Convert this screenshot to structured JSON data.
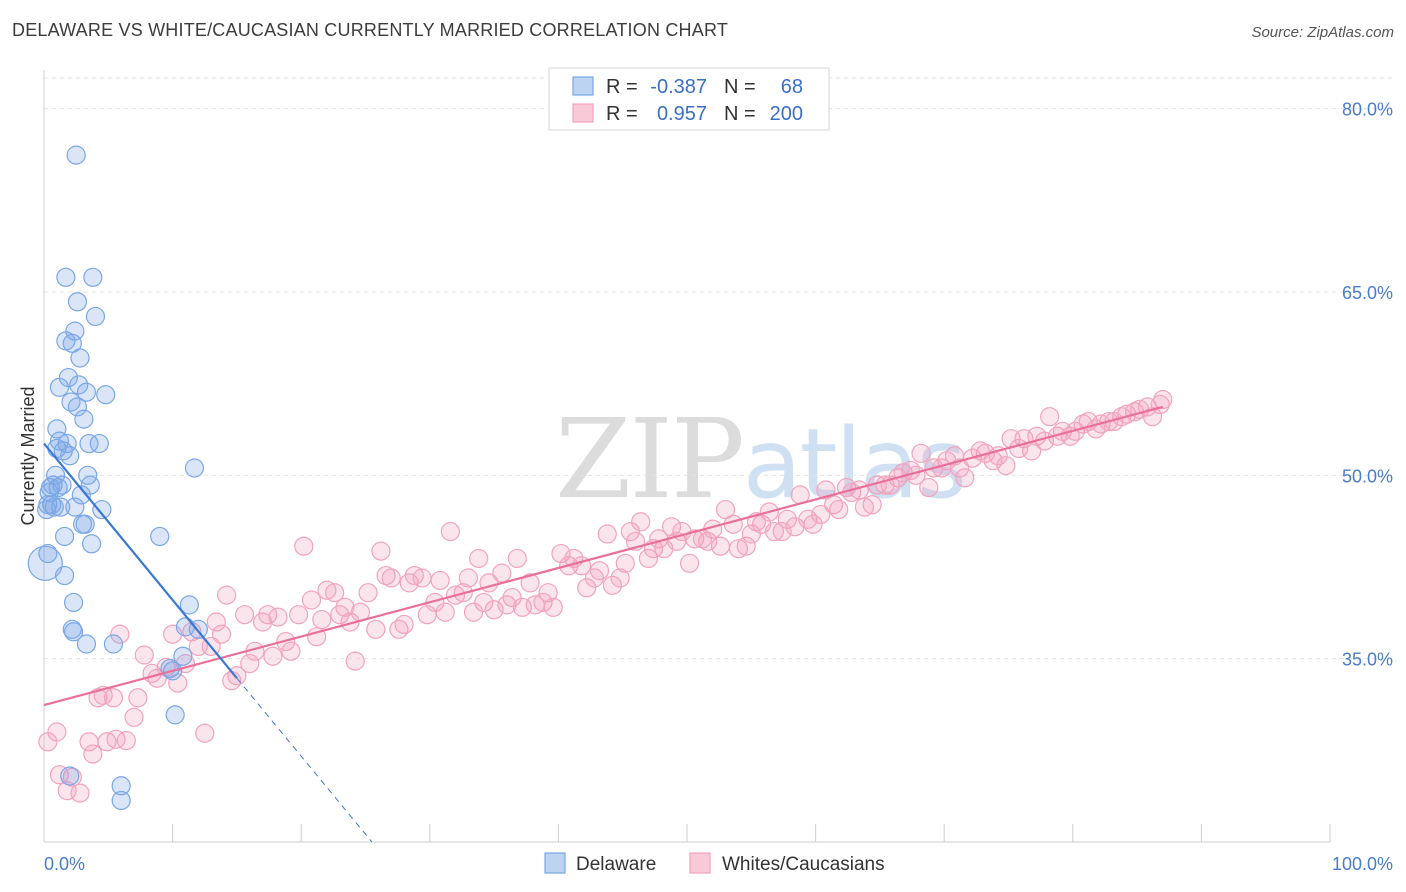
{
  "title": "DELAWARE VS WHITE/CAUCASIAN CURRENTLY MARRIED CORRELATION CHART",
  "source": "Source: ZipAtlas.com",
  "watermark": {
    "zip": "ZIP",
    "atlas": "atlas"
  },
  "colors": {
    "blue": "#7aa7e6",
    "blue_line": "#3a78d4",
    "pink": "#f2a3bd",
    "pink_line": "#e8709a",
    "grid": "#e3e3e3",
    "axis_text": "#4a7cc9"
  },
  "legend": {
    "rows": [
      {
        "r_label": "R =",
        "r_value": "-0.387",
        "n_label": "N =",
        "n_value": "68"
      },
      {
        "r_label": "R =",
        "r_value": "0.957",
        "n_label": "N =",
        "n_value": "200"
      }
    ]
  },
  "chart_data": {
    "type": "scatter",
    "title": "DELAWARE VS WHITE/CAUCASIAN CURRENTLY MARRIED CORRELATION CHART",
    "xlabel": "",
    "ylabel": "Currently Married",
    "xlim": [
      0,
      100
    ],
    "ylim": [
      20,
      83
    ],
    "y_ticks": [
      35,
      50,
      65,
      80
    ],
    "y_tick_labels": [
      "35.0%",
      "50.0%",
      "65.0%",
      "80.0%"
    ],
    "x_tick_labels": [
      "0.0%",
      "100.0%"
    ],
    "series": [
      {
        "name": "Delaware",
        "r": -0.387,
        "n": 68,
        "points": [
          [
            0.1,
            42.8
          ],
          [
            0.3,
            43.6
          ],
          [
            0.2,
            47.2
          ],
          [
            0.3,
            47.6
          ],
          [
            0.4,
            48.6
          ],
          [
            0.5,
            49.0
          ],
          [
            0.6,
            47.6
          ],
          [
            0.7,
            49.2
          ],
          [
            0.8,
            47.4
          ],
          [
            0.9,
            50.0
          ],
          [
            1.0,
            52.2
          ],
          [
            1.0,
            53.8
          ],
          [
            1.1,
            49.0
          ],
          [
            1.2,
            52.8
          ],
          [
            1.2,
            57.2
          ],
          [
            1.3,
            47.4
          ],
          [
            1.4,
            49.2
          ],
          [
            1.5,
            52.0
          ],
          [
            1.6,
            45.0
          ],
          [
            1.6,
            41.8
          ],
          [
            1.7,
            61.0
          ],
          [
            1.7,
            66.2
          ],
          [
            1.8,
            52.6
          ],
          [
            1.9,
            58.0
          ],
          [
            2.0,
            51.6
          ],
          [
            2.0,
            25.4
          ],
          [
            2.1,
            56.0
          ],
          [
            2.2,
            60.8
          ],
          [
            2.2,
            37.4
          ],
          [
            2.3,
            37.2
          ],
          [
            2.3,
            39.6
          ],
          [
            2.4,
            61.8
          ],
          [
            2.4,
            47.4
          ],
          [
            2.5,
            76.2
          ],
          [
            2.6,
            55.6
          ],
          [
            2.6,
            64.2
          ],
          [
            2.7,
            57.4
          ],
          [
            2.8,
            59.6
          ],
          [
            2.9,
            48.4
          ],
          [
            3.0,
            46.0
          ],
          [
            3.1,
            54.6
          ],
          [
            3.2,
            46.0
          ],
          [
            3.3,
            36.2
          ],
          [
            3.3,
            56.8
          ],
          [
            3.4,
            50.0
          ],
          [
            3.5,
            52.6
          ],
          [
            3.6,
            49.2
          ],
          [
            3.7,
            44.4
          ],
          [
            3.8,
            66.2
          ],
          [
            4.0,
            63.0
          ],
          [
            4.3,
            52.6
          ],
          [
            4.5,
            47.2
          ],
          [
            4.8,
            56.6
          ],
          [
            5.4,
            36.2
          ],
          [
            6.0,
            24.6
          ],
          [
            6.0,
            23.4
          ],
          [
            9.0,
            45.0
          ],
          [
            9.8,
            34.2
          ],
          [
            10.0,
            34.0
          ],
          [
            10.2,
            30.4
          ],
          [
            10.8,
            35.2
          ],
          [
            11.0,
            37.6
          ],
          [
            11.3,
            39.4
          ],
          [
            11.7,
            50.6
          ],
          [
            12.0,
            37.4
          ]
        ],
        "trend": {
          "x": [
            0,
            15
          ],
          "y": [
            52.6,
            33.4
          ],
          "extended_to": [
            25.5,
            20.0
          ]
        }
      },
      {
        "name": "Whites/Caucasians",
        "r": 0.957,
        "n": 200,
        "points": [
          [
            0.3,
            28.2
          ],
          [
            1.0,
            29.0
          ],
          [
            1.2,
            25.5
          ],
          [
            1.8,
            24.2
          ],
          [
            2.2,
            25.3
          ],
          [
            2.8,
            24.0
          ],
          [
            3.5,
            28.2
          ],
          [
            3.8,
            27.2
          ],
          [
            4.2,
            31.8
          ],
          [
            4.6,
            32.0
          ],
          [
            4.9,
            28.2
          ],
          [
            5.4,
            31.8
          ],
          [
            5.6,
            28.4
          ],
          [
            5.9,
            37.0
          ],
          [
            6.4,
            28.3
          ],
          [
            7.0,
            30.2
          ],
          [
            7.3,
            31.8
          ],
          [
            7.8,
            35.3
          ],
          [
            8.4,
            33.8
          ],
          [
            8.8,
            33.4
          ],
          [
            9.5,
            34.3
          ],
          [
            10.0,
            37.0
          ],
          [
            10.4,
            33.0
          ],
          [
            11.0,
            34.6
          ],
          [
            11.5,
            37.2
          ],
          [
            12.0,
            36.0
          ],
          [
            12.5,
            28.9
          ],
          [
            13.0,
            36.0
          ],
          [
            13.4,
            38.0
          ],
          [
            13.8,
            37.0
          ],
          [
            14.2,
            40.2
          ],
          [
            14.6,
            33.2
          ],
          [
            15.0,
            33.6
          ],
          [
            15.6,
            38.6
          ],
          [
            16.0,
            34.6
          ],
          [
            16.4,
            35.6
          ],
          [
            17.0,
            38.0
          ],
          [
            17.4,
            38.6
          ],
          [
            17.8,
            35.2
          ],
          [
            18.2,
            38.4
          ],
          [
            18.8,
            36.4
          ],
          [
            19.2,
            35.6
          ],
          [
            19.8,
            38.6
          ],
          [
            20.2,
            44.2
          ],
          [
            20.8,
            39.8
          ],
          [
            21.2,
            36.8
          ],
          [
            21.6,
            38.2
          ],
          [
            22.0,
            40.6
          ],
          [
            22.6,
            40.4
          ],
          [
            23.0,
            38.6
          ],
          [
            23.4,
            39.2
          ],
          [
            23.8,
            38.0
          ],
          [
            24.2,
            34.8
          ],
          [
            24.6,
            38.8
          ],
          [
            25.2,
            40.4
          ],
          [
            25.8,
            37.4
          ],
          [
            26.2,
            43.8
          ],
          [
            26.6,
            41.8
          ],
          [
            27.0,
            41.6
          ],
          [
            27.6,
            37.4
          ],
          [
            28.0,
            37.8
          ],
          [
            28.4,
            41.2
          ],
          [
            28.8,
            41.8
          ],
          [
            29.4,
            41.6
          ],
          [
            29.8,
            38.6
          ],
          [
            30.4,
            39.6
          ],
          [
            30.8,
            41.4
          ],
          [
            31.2,
            38.8
          ],
          [
            31.6,
            45.4
          ],
          [
            32.0,
            40.2
          ],
          [
            32.6,
            40.4
          ],
          [
            33.0,
            41.6
          ],
          [
            33.4,
            38.8
          ],
          [
            33.8,
            43.2
          ],
          [
            34.2,
            39.6
          ],
          [
            34.6,
            41.2
          ],
          [
            35.0,
            39.0
          ],
          [
            35.6,
            42.0
          ],
          [
            36.0,
            39.4
          ],
          [
            36.4,
            40.0
          ],
          [
            36.8,
            43.2
          ],
          [
            37.2,
            39.2
          ],
          [
            37.8,
            41.2
          ],
          [
            38.2,
            39.4
          ],
          [
            38.8,
            39.6
          ],
          [
            39.2,
            40.4
          ],
          [
            39.6,
            39.2
          ],
          [
            40.2,
            43.6
          ],
          [
            40.8,
            42.6
          ],
          [
            41.2,
            43.2
          ],
          [
            41.8,
            42.6
          ],
          [
            42.2,
            40.8
          ],
          [
            42.8,
            41.6
          ],
          [
            43.2,
            42.2
          ],
          [
            43.8,
            45.2
          ],
          [
            44.2,
            41.0
          ],
          [
            44.8,
            41.6
          ],
          [
            45.2,
            42.8
          ],
          [
            45.6,
            45.4
          ],
          [
            46.0,
            44.6
          ],
          [
            46.4,
            46.2
          ],
          [
            47.0,
            43.2
          ],
          [
            47.4,
            44.0
          ],
          [
            47.8,
            44.8
          ],
          [
            48.2,
            44.0
          ],
          [
            48.8,
            45.8
          ],
          [
            49.2,
            44.6
          ],
          [
            49.6,
            45.4
          ],
          [
            50.2,
            42.8
          ],
          [
            50.6,
            44.8
          ],
          [
            51.2,
            44.8
          ],
          [
            51.6,
            44.6
          ],
          [
            52.0,
            45.6
          ],
          [
            52.6,
            44.2
          ],
          [
            53.0,
            47.2
          ],
          [
            53.6,
            46.0
          ],
          [
            54.0,
            44.0
          ],
          [
            54.6,
            44.2
          ],
          [
            55.0,
            45.2
          ],
          [
            55.4,
            46.2
          ],
          [
            55.8,
            46.0
          ],
          [
            56.4,
            47.0
          ],
          [
            56.8,
            45.4
          ],
          [
            57.4,
            45.4
          ],
          [
            57.8,
            46.4
          ],
          [
            58.4,
            45.8
          ],
          [
            58.8,
            48.4
          ],
          [
            59.4,
            46.4
          ],
          [
            59.8,
            46.0
          ],
          [
            60.4,
            46.8
          ],
          [
            60.8,
            48.8
          ],
          [
            61.4,
            47.6
          ],
          [
            61.8,
            47.2
          ],
          [
            62.4,
            49.0
          ],
          [
            62.8,
            48.6
          ],
          [
            63.4,
            48.8
          ],
          [
            63.8,
            47.4
          ],
          [
            64.4,
            47.6
          ],
          [
            64.8,
            49.2
          ],
          [
            65.4,
            49.2
          ],
          [
            65.8,
            49.2
          ],
          [
            66.4,
            49.8
          ],
          [
            66.8,
            50.2
          ],
          [
            67.4,
            50.4
          ],
          [
            67.8,
            50.0
          ],
          [
            68.2,
            51.8
          ],
          [
            68.8,
            49.0
          ],
          [
            69.2,
            50.6
          ],
          [
            69.8,
            50.6
          ],
          [
            70.2,
            51.2
          ],
          [
            70.8,
            51.6
          ],
          [
            71.2,
            50.6
          ],
          [
            71.6,
            49.8
          ],
          [
            72.2,
            51.4
          ],
          [
            72.8,
            52.0
          ],
          [
            73.2,
            51.8
          ],
          [
            73.8,
            51.2
          ],
          [
            74.2,
            51.6
          ],
          [
            74.8,
            50.8
          ],
          [
            75.2,
            53.0
          ],
          [
            75.8,
            52.2
          ],
          [
            76.2,
            53.0
          ],
          [
            76.8,
            52.0
          ],
          [
            77.2,
            53.2
          ],
          [
            77.8,
            52.8
          ],
          [
            78.2,
            54.8
          ],
          [
            78.8,
            53.2
          ],
          [
            79.2,
            53.6
          ],
          [
            79.8,
            53.2
          ],
          [
            80.2,
            53.6
          ],
          [
            80.8,
            54.2
          ],
          [
            81.2,
            54.4
          ],
          [
            81.8,
            53.8
          ],
          [
            82.2,
            54.2
          ],
          [
            82.8,
            54.4
          ],
          [
            83.2,
            54.4
          ],
          [
            83.8,
            54.8
          ],
          [
            84.2,
            55.0
          ],
          [
            84.8,
            55.2
          ],
          [
            85.2,
            55.4
          ],
          [
            85.8,
            55.6
          ],
          [
            86.2,
            54.8
          ],
          [
            86.8,
            55.8
          ],
          [
            87.0,
            56.2
          ]
        ],
        "trend": {
          "x": [
            0,
            87
          ],
          "y": [
            31.2,
            55.6
          ]
        }
      }
    ]
  }
}
